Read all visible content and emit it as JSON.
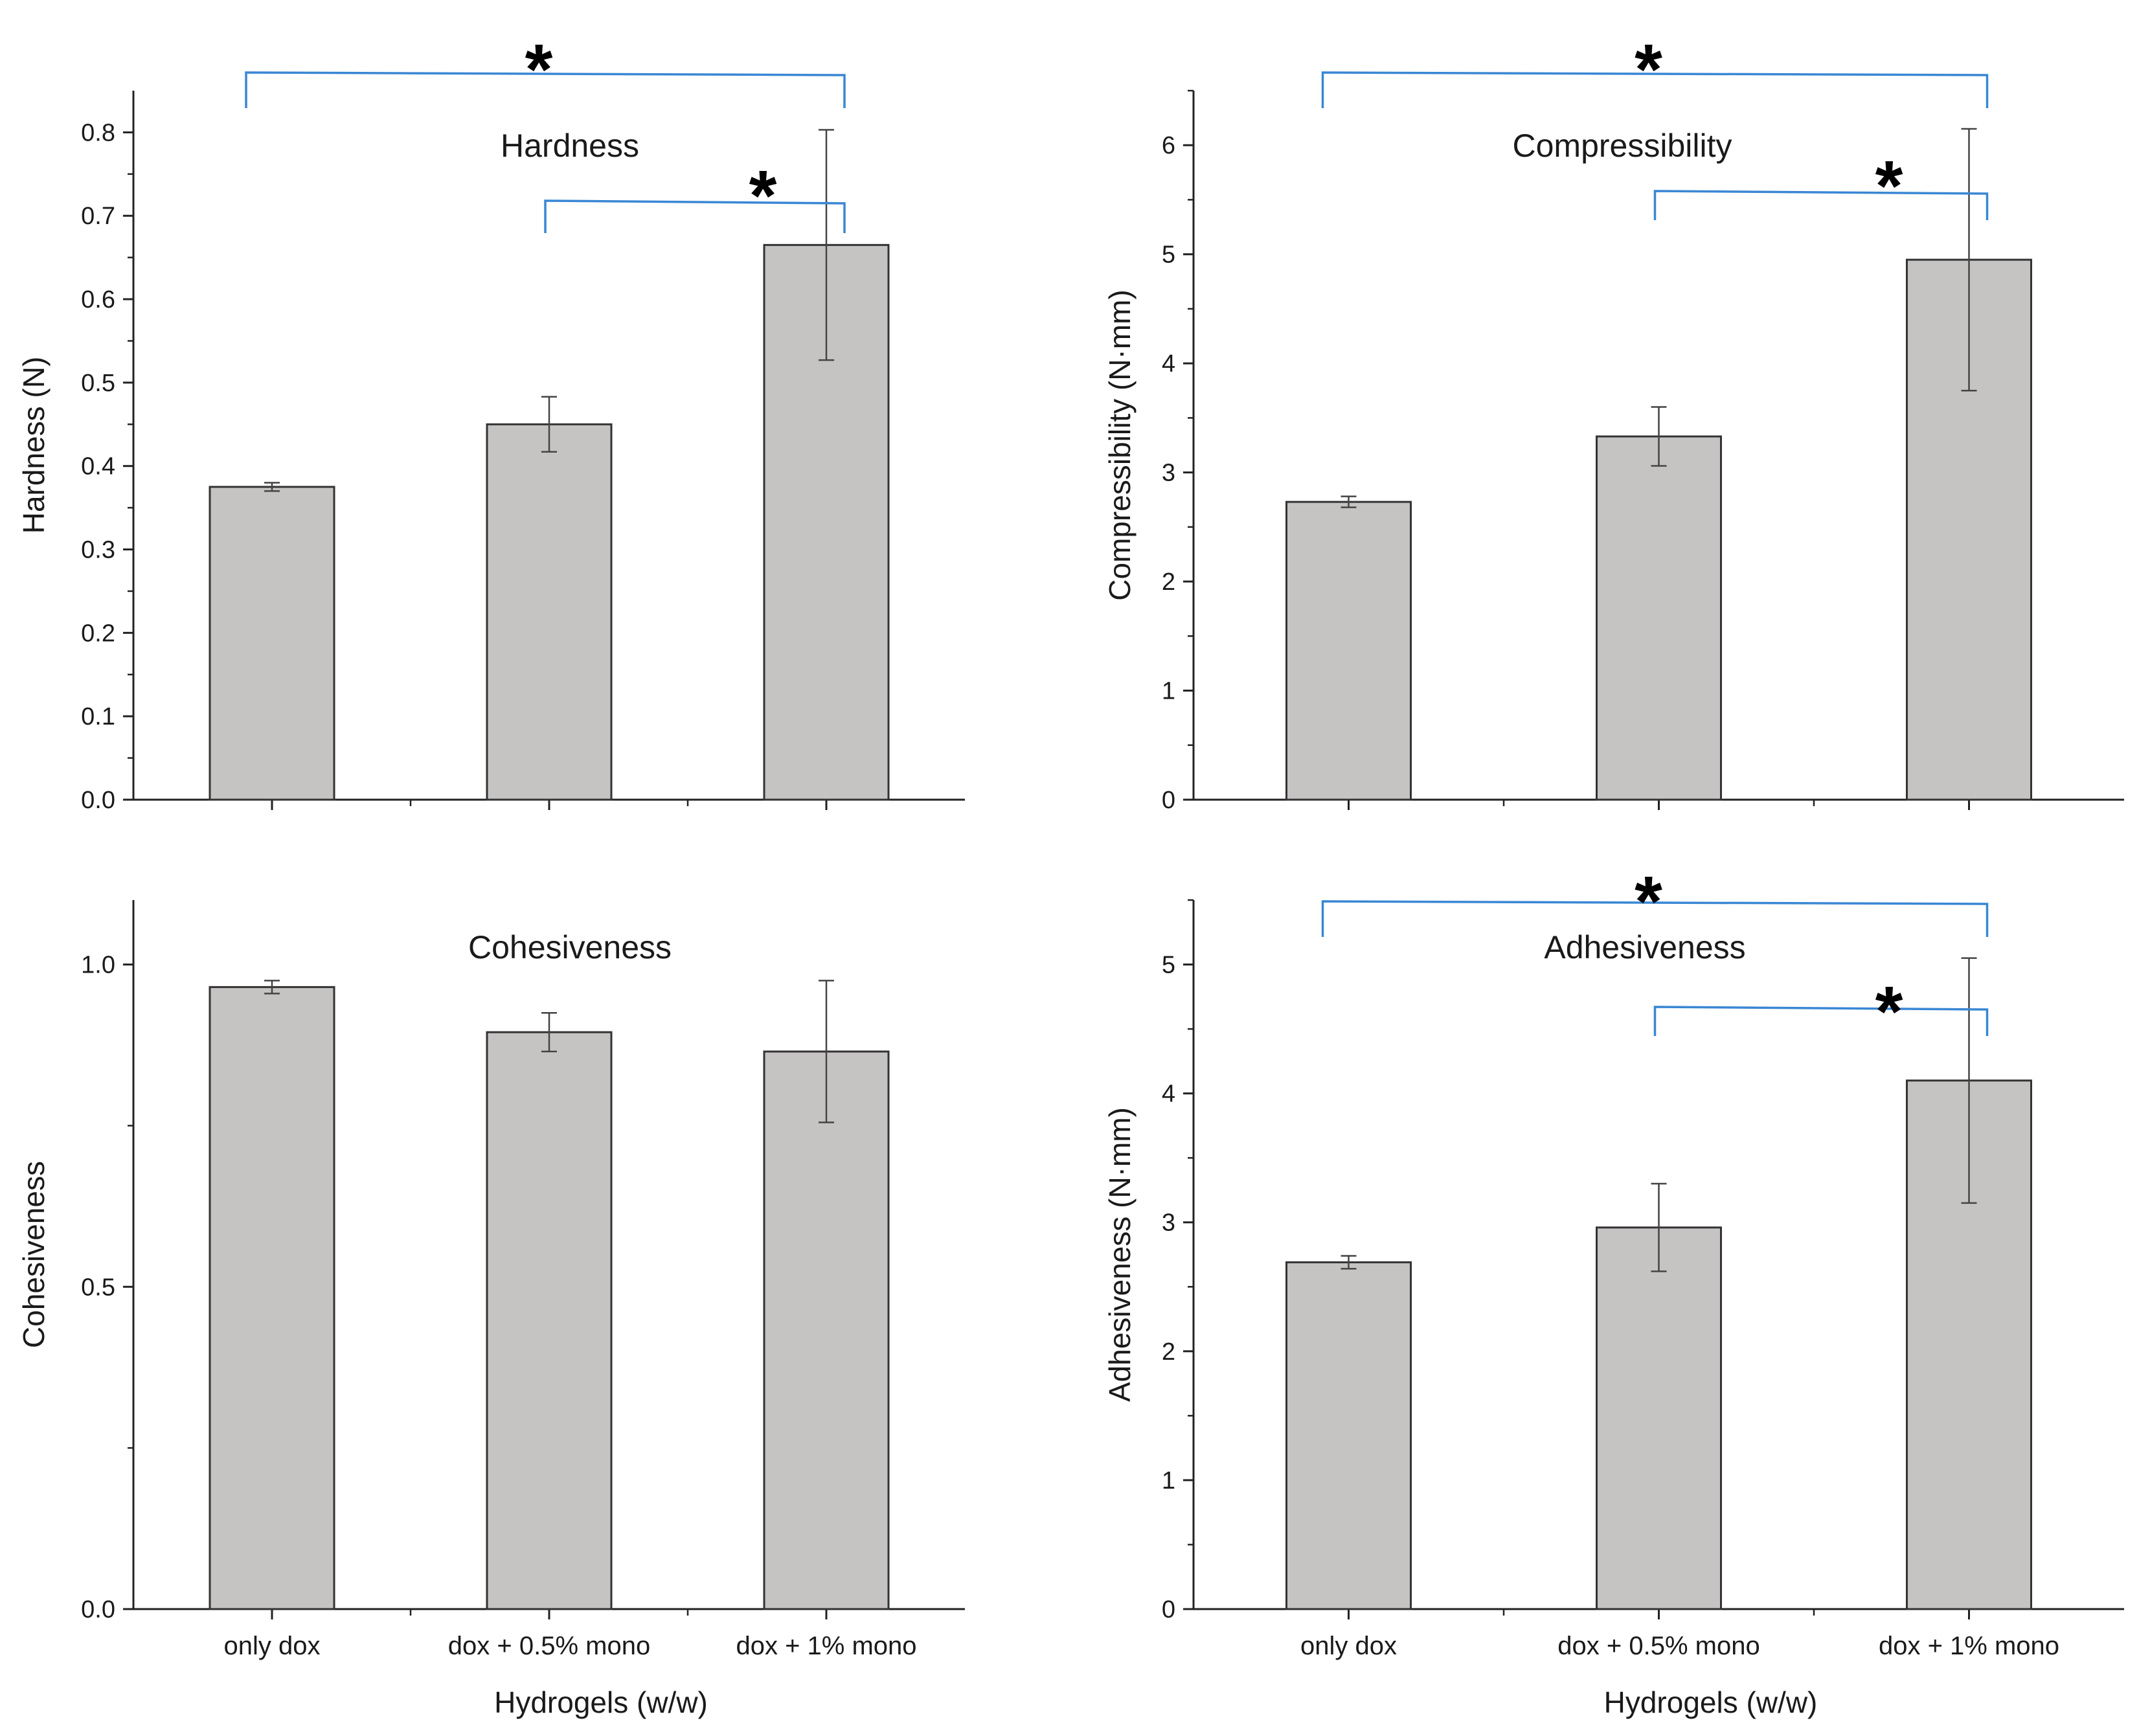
{
  "colors": {
    "bar": "#c6c3c3",
    "bar_edge": "#333333",
    "bracket": "#3a87d4",
    "axis": "#222222",
    "error": "#444444"
  },
  "chart_data": [
    {
      "type": "bar",
      "panel": "top-left",
      "title": "Hardness",
      "ylabel": "Hardness (N)",
      "xlabel": "",
      "categories": [
        "only dox",
        "dox + 0.5% mono",
        "dox + 1% mono"
      ],
      "values": [
        0.375,
        0.45,
        0.665
      ],
      "errors": [
        0.005,
        0.033,
        0.138
      ],
      "ylim": [
        0,
        0.85
      ],
      "yticks": [
        0.0,
        0.1,
        0.2,
        0.3,
        0.4,
        0.5,
        0.6,
        0.7,
        0.8
      ],
      "ytick_labels": [
        "0.0",
        "0.1",
        "0.2",
        "0.3",
        "0.4",
        "0.5",
        "0.6",
        "0.7",
        "0.8"
      ],
      "show_category_labels": false,
      "significance": [
        {
          "from": 0,
          "to": 2,
          "label": "*"
        },
        {
          "from": 1,
          "to": 2,
          "label": "*"
        }
      ]
    },
    {
      "type": "bar",
      "panel": "top-right",
      "title": "Compressibility",
      "ylabel": "Compressibility (N·mm)",
      "xlabel": "",
      "categories": [
        "only dox",
        "dox + 0.5% mono",
        "dox + 1% mono"
      ],
      "values": [
        2.73,
        3.33,
        4.95
      ],
      "errors": [
        0.05,
        0.27,
        1.2
      ],
      "ylim": [
        0,
        6.5
      ],
      "yticks": [
        0,
        1,
        2,
        3,
        4,
        5,
        6
      ],
      "ytick_labels": [
        "0",
        "1",
        "2",
        "3",
        "4",
        "5",
        "6"
      ],
      "show_category_labels": false,
      "significance": [
        {
          "from": 0,
          "to": 2,
          "label": "*"
        },
        {
          "from": 1,
          "to": 2,
          "label": "*"
        }
      ]
    },
    {
      "type": "bar",
      "panel": "bottom-left",
      "title": "Cohesiveness",
      "ylabel": "Cohesiveness",
      "xlabel": "Hydrogels (w/w)",
      "categories": [
        "only dox",
        "dox + 0.5% mono",
        "dox + 1% mono"
      ],
      "values": [
        0.965,
        0.895,
        0.865
      ],
      "errors": [
        0.01,
        0.03,
        0.11
      ],
      "ylim": [
        0,
        1.1
      ],
      "yticks": [
        0.0,
        0.5,
        1.0
      ],
      "ytick_labels": [
        "0.0",
        "0.5",
        "1.0"
      ],
      "show_category_labels": true,
      "significance": []
    },
    {
      "type": "bar",
      "panel": "bottom-right",
      "title": "Adhesiveness",
      "ylabel": "Adhesiveness (N·mm)",
      "xlabel": "Hydrogels (w/w)",
      "categories": [
        "only dox",
        "dox + 0.5% mono",
        "dox + 1% mono"
      ],
      "values": [
        2.69,
        2.96,
        4.1
      ],
      "errors": [
        0.05,
        0.34,
        0.95
      ],
      "ylim": [
        0,
        5.5
      ],
      "yticks": [
        0,
        1,
        2,
        3,
        4,
        5
      ],
      "ytick_labels": [
        "0",
        "1",
        "2",
        "3",
        "4",
        "5"
      ],
      "show_category_labels": true,
      "significance": [
        {
          "from": 0,
          "to": 2,
          "label": "*"
        },
        {
          "from": 1,
          "to": 2,
          "label": "*"
        }
      ]
    }
  ]
}
